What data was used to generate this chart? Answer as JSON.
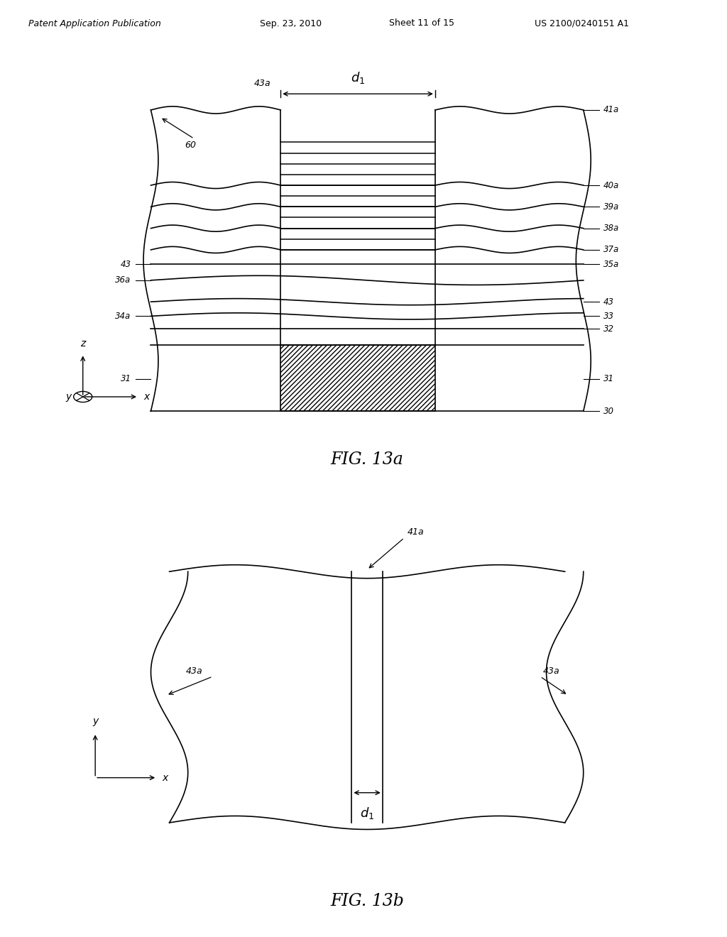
{
  "bg_color": "#ffffff",
  "header_text": "Patent Application Publication",
  "header_date": "Sep. 23, 2010",
  "header_sheet": "Sheet 11 of 15",
  "header_patent": "US 2100/0240151 A1",
  "fig_title_a": "FIG. 13a",
  "fig_title_b": "FIG. 13b",
  "line_color": "#000000"
}
